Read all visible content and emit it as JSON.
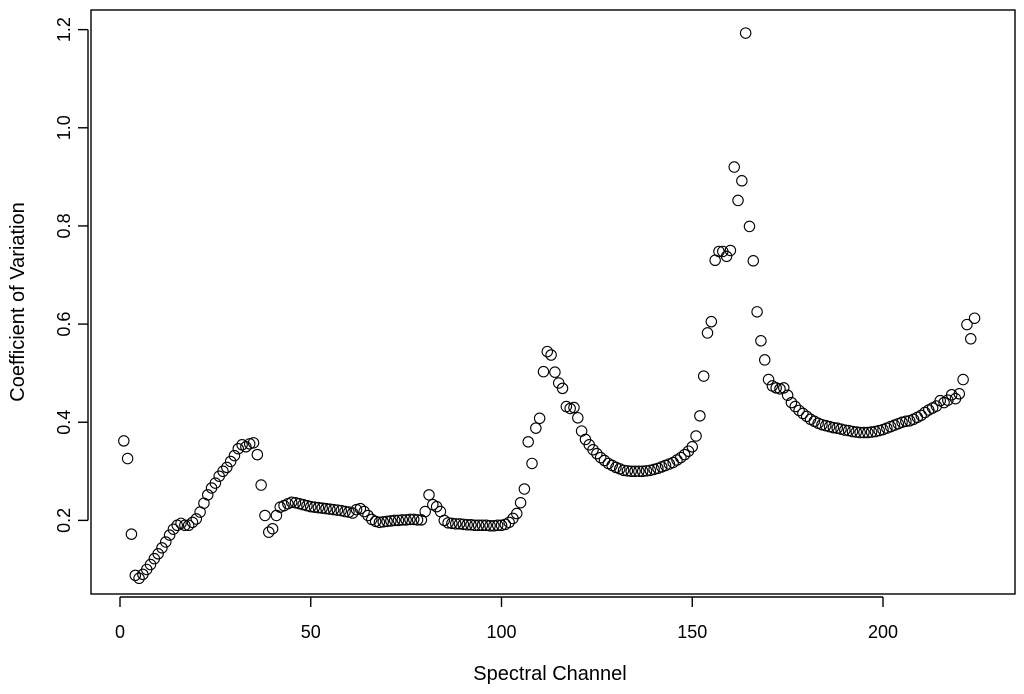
{
  "chart_data": {
    "type": "scatter",
    "title": "",
    "xlabel": "Spectral Channel",
    "ylabel": "Coefficient of Variation",
    "xlim": [
      -7.6,
      234.6
    ],
    "ylim": [
      0.05,
      1.24
    ],
    "xticks": [
      0,
      50,
      100,
      150,
      200
    ],
    "xtick_labels": [
      "0",
      "50",
      "100",
      "150",
      "200"
    ],
    "yticks": [
      0.2,
      0.4,
      0.6,
      0.8,
      1.0,
      1.2
    ],
    "ytick_labels": [
      "0.2",
      "0.4",
      "0.6",
      "0.8",
      "1.0",
      "1.2"
    ],
    "grid": false,
    "marker": "open-circle",
    "colors": {
      "marker_stroke": "#000000",
      "axis": "#000000",
      "background": "#ffffff"
    },
    "series": [
      {
        "x": [
          1,
          2,
          3,
          4,
          5,
          6,
          7,
          8,
          9,
          10,
          11,
          12,
          13,
          14,
          15,
          16,
          17,
          18,
          19,
          20,
          21,
          22,
          23,
          24,
          25,
          26,
          27,
          28,
          29,
          30,
          31,
          32,
          33,
          34,
          35,
          36,
          37,
          38,
          39,
          40,
          41,
          42,
          43,
          44,
          45,
          46,
          47,
          48,
          49,
          50,
          51,
          52,
          53,
          54,
          55,
          56,
          57,
          58,
          59,
          60,
          61,
          62,
          63,
          64,
          65,
          66,
          67,
          68,
          69,
          70,
          71,
          72,
          73,
          74,
          75,
          76,
          77,
          78,
          79,
          80,
          81,
          82,
          83,
          84,
          85,
          86,
          87,
          88,
          89,
          90,
          91,
          92,
          93,
          94,
          95,
          96,
          97,
          98,
          99,
          100,
          101,
          102,
          103,
          104,
          105,
          106,
          107,
          108,
          109,
          110,
          111,
          112,
          113,
          114,
          115,
          116,
          117,
          118,
          119,
          120,
          121,
          122,
          123,
          124,
          125,
          126,
          127,
          128,
          129,
          130,
          131,
          132,
          133,
          134,
          135,
          136,
          137,
          138,
          139,
          140,
          141,
          142,
          143,
          144,
          145,
          146,
          147,
          148,
          149,
          150,
          151,
          152,
          153,
          154,
          155,
          156,
          157,
          158,
          159,
          160,
          161,
          162,
          163,
          164,
          165,
          166,
          167,
          168,
          169,
          170,
          171,
          172,
          173,
          174,
          175,
          176,
          177,
          178,
          179,
          180,
          181,
          182,
          183,
          184,
          185,
          186,
          187,
          188,
          189,
          190,
          191,
          192,
          193,
          194,
          195,
          196,
          197,
          198,
          199,
          200,
          201,
          202,
          203,
          204,
          205,
          206,
          207,
          208,
          209,
          210,
          211,
          212,
          213,
          214,
          215,
          216,
          217,
          218,
          219,
          220,
          221,
          222,
          223,
          224
        ],
        "y": [
          0.362,
          0.326,
          0.172,
          0.088,
          0.082,
          0.09,
          0.1,
          0.11,
          0.122,
          0.132,
          0.144,
          0.156,
          0.17,
          0.182,
          0.19,
          0.194,
          0.19,
          0.19,
          0.196,
          0.203,
          0.217,
          0.235,
          0.252,
          0.266,
          0.276,
          0.29,
          0.3,
          0.308,
          0.32,
          0.332,
          0.346,
          0.354,
          0.35,
          0.356,
          0.358,
          0.334,
          0.272,
          0.21,
          0.176,
          0.183,
          0.21,
          0.227,
          0.23,
          0.234,
          0.237,
          0.236,
          0.234,
          0.232,
          0.23,
          0.228,
          0.227,
          0.226,
          0.225,
          0.224,
          0.223,
          0.222,
          0.221,
          0.22,
          0.218,
          0.217,
          0.215,
          0.222,
          0.224,
          0.218,
          0.21,
          0.202,
          0.198,
          0.196,
          0.197,
          0.198,
          0.199,
          0.2,
          0.2,
          0.201,
          0.201,
          0.202,
          0.202,
          0.201,
          0.201,
          0.218,
          0.252,
          0.232,
          0.228,
          0.218,
          0.2,
          0.195,
          0.194,
          0.193,
          0.193,
          0.192,
          0.191,
          0.191,
          0.19,
          0.19,
          0.19,
          0.19,
          0.189,
          0.189,
          0.19,
          0.19,
          0.192,
          0.196,
          0.204,
          0.214,
          0.236,
          0.264,
          0.36,
          0.316,
          0.388,
          0.408,
          0.503,
          0.544,
          0.537,
          0.502,
          0.48,
          0.469,
          0.432,
          0.428,
          0.43,
          0.409,
          0.382,
          0.365,
          0.354,
          0.344,
          0.336,
          0.328,
          0.322,
          0.316,
          0.312,
          0.308,
          0.305,
          0.302,
          0.301,
          0.3,
          0.3,
          0.3,
          0.3,
          0.301,
          0.302,
          0.304,
          0.306,
          0.309,
          0.312,
          0.315,
          0.318,
          0.323,
          0.328,
          0.334,
          0.341,
          0.35,
          0.372,
          0.413,
          0.494,
          0.582,
          0.605,
          0.73,
          0.748,
          0.748,
          0.738,
          0.75,
          0.92,
          0.852,
          0.892,
          1.193,
          0.799,
          0.729,
          0.625,
          0.566,
          0.527,
          0.487,
          0.474,
          0.47,
          0.468,
          0.47,
          0.455,
          0.44,
          0.432,
          0.424,
          0.418,
          0.412,
          0.406,
          0.402,
          0.398,
          0.395,
          0.393,
          0.391,
          0.389,
          0.388,
          0.386,
          0.384,
          0.383,
          0.381,
          0.38,
          0.379,
          0.379,
          0.379,
          0.38,
          0.381,
          0.383,
          0.385,
          0.388,
          0.391,
          0.394,
          0.397,
          0.4,
          0.402,
          0.403,
          0.406,
          0.41,
          0.414,
          0.42,
          0.425,
          0.429,
          0.433,
          0.444,
          0.44,
          0.445,
          0.456,
          0.448,
          0.458,
          0.487,
          0.599,
          0.57,
          0.612
        ]
      }
    ]
  }
}
